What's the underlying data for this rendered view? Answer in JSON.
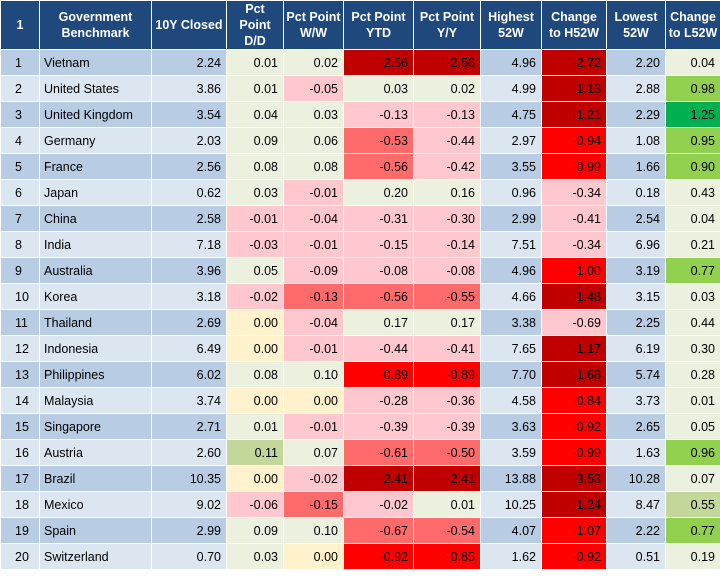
{
  "table": {
    "headers": [
      {
        "key": "idx",
        "label": "1"
      },
      {
        "key": "name",
        "label": "Government Benchmark"
      },
      {
        "key": "closed",
        "label": "10Y Closed"
      },
      {
        "key": "dd",
        "label": "Pct Point D/D"
      },
      {
        "key": "ww",
        "label": "Pct Point W/W"
      },
      {
        "key": "ytd",
        "label": "Pct Point YTD"
      },
      {
        "key": "yy",
        "label": "Pct Point Y/Y"
      },
      {
        "key": "h52",
        "label": "Highest 52W"
      },
      {
        "key": "ch52",
        "label": "Change to H52W"
      },
      {
        "key": "l52",
        "label": "Lowest 52W"
      },
      {
        "key": "cl52",
        "label": "Change to L52W"
      }
    ],
    "rows": [
      {
        "idx": "1",
        "name": "Vietnam",
        "closed": "2.24",
        "dd": "0.01",
        "ww": "0.02",
        "ytd": "-2.56",
        "yy": "-2.56",
        "h52": "4.96",
        "ch52": "-2.72",
        "l52": "2.20",
        "cl52": "0.04"
      },
      {
        "idx": "2",
        "name": "United States",
        "closed": "3.86",
        "dd": "0.01",
        "ww": "-0.05",
        "ytd": "0.03",
        "yy": "0.02",
        "h52": "4.99",
        "ch52": "-1.13",
        "l52": "2.88",
        "cl52": "0.98"
      },
      {
        "idx": "3",
        "name": "United Kingdom",
        "closed": "3.54",
        "dd": "0.04",
        "ww": "0.03",
        "ytd": "-0.13",
        "yy": "-0.13",
        "h52": "4.75",
        "ch52": "-1.21",
        "l52": "2.29",
        "cl52": "1.25"
      },
      {
        "idx": "4",
        "name": "Germany",
        "closed": "2.03",
        "dd": "0.09",
        "ww": "0.06",
        "ytd": "-0.53",
        "yy": "-0.44",
        "h52": "2.97",
        "ch52": "-0.94",
        "l52": "1.08",
        "cl52": "0.95"
      },
      {
        "idx": "5",
        "name": "France",
        "closed": "2.56",
        "dd": "0.08",
        "ww": "0.08",
        "ytd": "-0.56",
        "yy": "-0.42",
        "h52": "3.55",
        "ch52": "-0.99",
        "l52": "1.66",
        "cl52": "0.90"
      },
      {
        "idx": "6",
        "name": "Japan",
        "closed": "0.62",
        "dd": "0.03",
        "ww": "-0.01",
        "ytd": "0.20",
        "yy": "0.16",
        "h52": "0.96",
        "ch52": "-0.34",
        "l52": "0.18",
        "cl52": "0.43"
      },
      {
        "idx": "7",
        "name": "China",
        "closed": "2.58",
        "dd": "-0.01",
        "ww": "-0.04",
        "ytd": "-0.31",
        "yy": "-0.30",
        "h52": "2.99",
        "ch52": "-0.41",
        "l52": "2.54",
        "cl52": "0.04"
      },
      {
        "idx": "8",
        "name": "India",
        "closed": "7.18",
        "dd": "-0.03",
        "ww": "-0.01",
        "ytd": "-0.15",
        "yy": "-0.14",
        "h52": "7.51",
        "ch52": "-0.34",
        "l52": "6.96",
        "cl52": "0.21"
      },
      {
        "idx": "9",
        "name": "Australia",
        "closed": "3.96",
        "dd": "0.05",
        "ww": "-0.09",
        "ytd": "-0.08",
        "yy": "-0.08",
        "h52": "4.96",
        "ch52": "-1.00",
        "l52": "3.19",
        "cl52": "0.77"
      },
      {
        "idx": "10",
        "name": "Korea",
        "closed": "3.18",
        "dd": "-0.02",
        "ww": "-0.13",
        "ytd": "-0.56",
        "yy": "-0.55",
        "h52": "4.66",
        "ch52": "-1.48",
        "l52": "3.15",
        "cl52": "0.03"
      },
      {
        "idx": "11",
        "name": "Thailand",
        "closed": "2.69",
        "dd": "0.00",
        "ww": "-0.04",
        "ytd": "0.17",
        "yy": "0.17",
        "h52": "3.38",
        "ch52": "-0.69",
        "l52": "2.25",
        "cl52": "0.44"
      },
      {
        "idx": "12",
        "name": "Indonesia",
        "closed": "6.49",
        "dd": "0.00",
        "ww": "-0.01",
        "ytd": "-0.44",
        "yy": "-0.41",
        "h52": "7.65",
        "ch52": "-1.17",
        "l52": "6.19",
        "cl52": "0.30"
      },
      {
        "idx": "13",
        "name": "Philippines",
        "closed": "6.02",
        "dd": "0.08",
        "ww": "0.10",
        "ytd": "-0.89",
        "yy": "-0.89",
        "h52": "7.70",
        "ch52": "-1.68",
        "l52": "5.74",
        "cl52": "0.28"
      },
      {
        "idx": "14",
        "name": "Malaysia",
        "closed": "3.74",
        "dd": "0.00",
        "ww": "0.00",
        "ytd": "-0.28",
        "yy": "-0.36",
        "h52": "4.58",
        "ch52": "-0.84",
        "l52": "3.73",
        "cl52": "0.01"
      },
      {
        "idx": "15",
        "name": "Singapore",
        "closed": "2.71",
        "dd": "0.01",
        "ww": "-0.01",
        "ytd": "-0.39",
        "yy": "-0.39",
        "h52": "3.63",
        "ch52": "-0.92",
        "l52": "2.65",
        "cl52": "0.05"
      },
      {
        "idx": "16",
        "name": "Austria",
        "closed": "2.60",
        "dd": "0.11",
        "ww": "0.07",
        "ytd": "-0.61",
        "yy": "-0.50",
        "h52": "3.59",
        "ch52": "-0.99",
        "l52": "1.63",
        "cl52": "0.96"
      },
      {
        "idx": "17",
        "name": "Brazil",
        "closed": "10.35",
        "dd": "0.00",
        "ww": "-0.02",
        "ytd": "-2.41",
        "yy": "-2.41",
        "h52": "13.88",
        "ch52": "-3.53",
        "l52": "10.28",
        "cl52": "0.07"
      },
      {
        "idx": "18",
        "name": "Mexico",
        "closed": "9.02",
        "dd": "-0.06",
        "ww": "-0.15",
        "ytd": "-0.02",
        "yy": "0.01",
        "h52": "10.25",
        "ch52": "-1.24",
        "l52": "8.47",
        "cl52": "0.55"
      },
      {
        "idx": "19",
        "name": "Spain",
        "closed": "2.99",
        "dd": "0.09",
        "ww": "0.10",
        "ytd": "-0.67",
        "yy": "-0.54",
        "h52": "4.07",
        "ch52": "-1.07",
        "l52": "2.22",
        "cl52": "0.77"
      },
      {
        "idx": "20",
        "name": "Switzerland",
        "closed": "0.70",
        "dd": "0.03",
        "ww": "0.00",
        "ytd": "-0.92",
        "yy": "-0.85",
        "h52": "1.62",
        "ch52": "-0.92",
        "l52": "0.51",
        "cl52": "0.19"
      }
    ]
  },
  "colors": {
    "header_bg": "#1f497d",
    "row_blue_a": "#b8cce4",
    "row_blue_b": "#dce6f1",
    "cell_default": "#ebf1de",
    "zero_neutral": "#fff2cc",
    "neg_light": "#ffc7ce",
    "neg_mid": "#ff6a6a",
    "neg_strong": "#ff0000",
    "neg_dark": "#c00000",
    "pos_light": "#c4d79b",
    "pos_mid": "#92d050",
    "pos_strong": "#00b050"
  }
}
